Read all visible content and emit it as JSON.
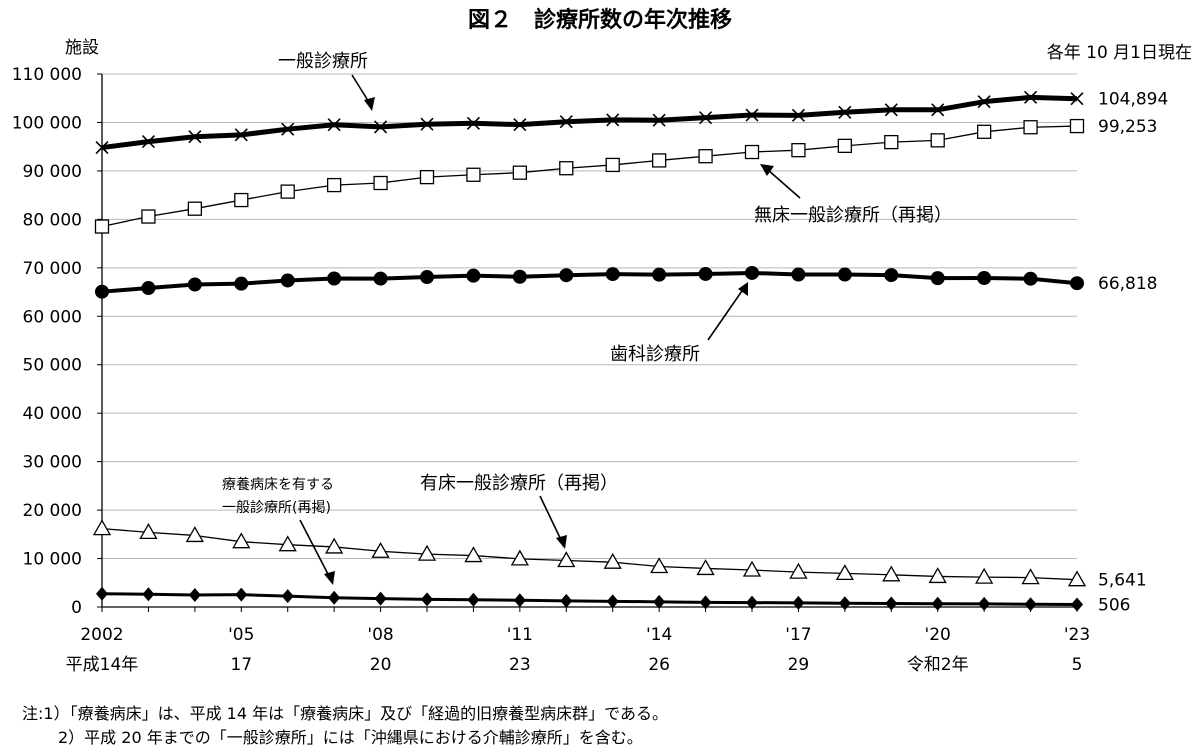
{
  "title": "図２　診療所数の年次推移",
  "unit_label": "施設",
  "date_note": "各年 10 月1日現在",
  "notes": [
    "注:1）「療養病床」は、平成 14 年は「療養病床」及び「経過的旧療養型病床群」である。",
    "2）平成 20 年までの「一般診療所」には「沖縄県における介輔診療所」を含む。"
  ],
  "chart_data": {
    "type": "line",
    "x": [
      2002,
      2003,
      2004,
      2005,
      2006,
      2007,
      2008,
      2009,
      2010,
      2011,
      2012,
      2013,
      2014,
      2015,
      2016,
      2017,
      2018,
      2019,
      2020,
      2021,
      2022,
      2023
    ],
    "xticks": [
      {
        "x": 2002,
        "label": "2002",
        "label2": "平成14年"
      },
      {
        "x": 2005,
        "label": "'05",
        "label2": "17"
      },
      {
        "x": 2008,
        "label": "'08",
        "label2": "20"
      },
      {
        "x": 2011,
        "label": "'11",
        "label2": "23"
      },
      {
        "x": 2014,
        "label": "'14",
        "label2": "26"
      },
      {
        "x": 2017,
        "label": "'17",
        "label2": "29"
      },
      {
        "x": 2020,
        "label": "'20",
        "label2": "令和2年"
      },
      {
        "x": 2023,
        "label": "'23",
        "label2": "5"
      }
    ],
    "ylim": [
      0,
      110000
    ],
    "yticks": [
      {
        "value": 0,
        "label": "0"
      },
      {
        "value": 10000,
        "label": "10 000"
      },
      {
        "value": 20000,
        "label": "20 000"
      },
      {
        "value": 30000,
        "label": "30 000"
      },
      {
        "value": 40000,
        "label": "40 000"
      },
      {
        "value": 50000,
        "label": "50 000"
      },
      {
        "value": 60000,
        "label": "60 000"
      },
      {
        "value": 70000,
        "label": "70 000"
      },
      {
        "value": 80000,
        "label": "80 000"
      },
      {
        "value": 90000,
        "label": "90 000"
      },
      {
        "value": 100000,
        "label": "100 000"
      },
      {
        "value": 110000,
        "label": "110 000"
      }
    ],
    "grid": true,
    "series": [
      {
        "name": "一般診療所",
        "marker": "x",
        "values": [
          94819,
          96050,
          97051,
          97442,
          98609,
          99532,
          99083,
          99635,
          99824,
          99547,
          100152,
          100528,
          100461,
          100995,
          101529,
          101471,
          102105,
          102616,
          102612,
          104292,
          105182,
          104894
        ],
        "end_label": "104,894"
      },
      {
        "name": "無床一般診療所（再掲）",
        "marker": "square",
        "values": [
          78525,
          80584,
          82201,
          83984,
          85727,
          87073,
          87503,
          88715,
          89204,
          89635,
          90556,
          91234,
          92161,
          93034,
          93898,
          94280,
          95171,
          95941,
          96309,
          98071,
          99012,
          99253
        ],
        "end_label": "99,253"
      },
      {
        "name": "歯科診療所",
        "marker": "circle",
        "values": [
          65073,
          65828,
          66557,
          66732,
          67392,
          67798,
          67779,
          68097,
          68384,
          68156,
          68474,
          68701,
          68592,
          68737,
          68940,
          68609,
          68613,
          68500,
          67874,
          67899,
          67755,
          66818
        ],
        "end_label": "66,818"
      },
      {
        "name": "有床一般診療所（再掲）",
        "marker": "triangle",
        "values": [
          16178,
          15408,
          14765,
          13477,
          12858,
          12399,
          11500,
          10920,
          10620,
          9934,
          9596,
          9249,
          8355,
          7961,
          7629,
          7202,
          6934,
          6644,
          6303,
          6169,
          6070,
          5641
        ],
        "end_label": "5,641"
      },
      {
        "name": "療養病床を有する一般診療所(再掲)",
        "marker": "diamond",
        "values": [
          2738,
          2630,
          2477,
          2544,
          2238,
          1905,
          1728,
          1573,
          1485,
          1385,
          1261,
          1173,
          1069,
          967,
          902,
          847,
          780,
          730,
          680,
          650,
          580,
          506
        ],
        "end_label": "506"
      }
    ]
  }
}
